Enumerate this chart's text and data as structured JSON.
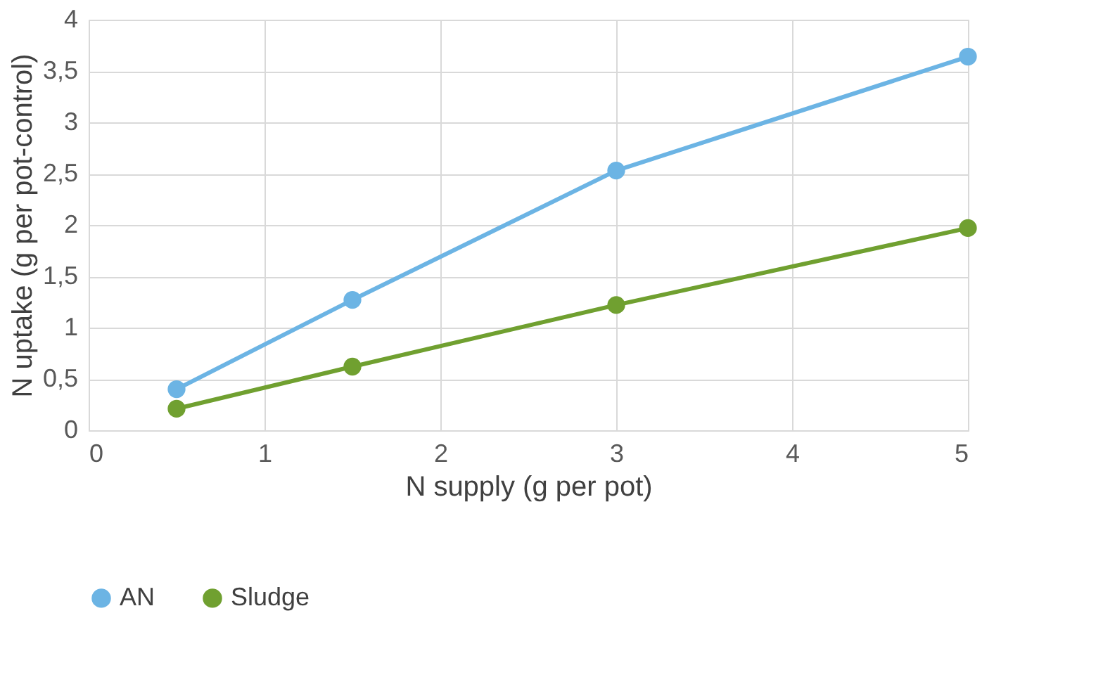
{
  "chart_data": {
    "type": "line",
    "xlabel": "N supply (g per pot)",
    "ylabel": "N uptake (g per pot-control)",
    "x": [
      0.5,
      1.5,
      3,
      5
    ],
    "series": [
      {
        "name": "AN",
        "color": "#6cb4e4",
        "values": [
          0.4,
          1.27,
          2.53,
          3.64
        ]
      },
      {
        "name": "Sludge",
        "color": "#70a030",
        "values": [
          0.21,
          0.62,
          1.22,
          1.97
        ]
      }
    ],
    "xlim": [
      0,
      5
    ],
    "xticks": [
      0,
      1,
      2,
      3,
      4,
      5
    ],
    "ylim": [
      0,
      4
    ],
    "yticks": [
      0,
      {
        "value": 0.5,
        "label": "0,5"
      },
      1,
      {
        "value": 1.5,
        "label": "1,5"
      },
      2,
      {
        "value": 2.5,
        "label": "2,5"
      },
      3,
      {
        "value": 3.5,
        "label": "3,5"
      },
      4
    ],
    "grid": true,
    "legend": "bottom",
    "marker": "circle",
    "line_style": "solid"
  }
}
